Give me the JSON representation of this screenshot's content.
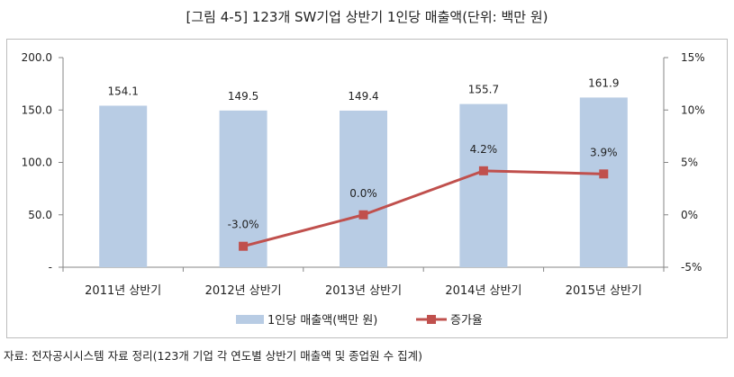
{
  "title": "[그림 4-5] 123개 SW기업 상반기 1인당 매출액(단위: 백만 원)",
  "source": "자료: 전자공시시스템 자료 정리(123개 기업 각 연도별 상반기 매출액 및 종업원 수 집계)",
  "colors": {
    "bar": "#b8cce4",
    "line": "#c0504d",
    "axis": "#868686"
  },
  "chart_data": {
    "type": "bar",
    "categories": [
      "2011년 상반기",
      "2012년 상반기",
      "2013년 상반기",
      "2014년 상반기",
      "2015년 상반기"
    ],
    "series": [
      {
        "name": "1인당 매출액(백만 원)",
        "type": "bar",
        "axis": "left",
        "values": [
          154.1,
          149.5,
          149.4,
          155.7,
          161.9
        ],
        "labels": [
          "154.1",
          "149.5",
          "149.4",
          "155.7",
          "161.9"
        ]
      },
      {
        "name": "증가율",
        "type": "line",
        "axis": "right",
        "values": [
          null,
          -3.0,
          0.0,
          4.2,
          3.9
        ],
        "labels": [
          "",
          "-3.0%",
          "0.0%",
          "4.2%",
          "3.9%"
        ]
      }
    ],
    "y_left": {
      "ylim": [
        0,
        200
      ],
      "ticks": [
        "-",
        "50.0",
        "100.0",
        "150.0",
        "200.0"
      ]
    },
    "y_right": {
      "ylim": [
        -5,
        15
      ],
      "ticks": [
        "-5%",
        "0%",
        "5%",
        "10%",
        "15%"
      ]
    },
    "grid": false,
    "legend": "bottom"
  }
}
